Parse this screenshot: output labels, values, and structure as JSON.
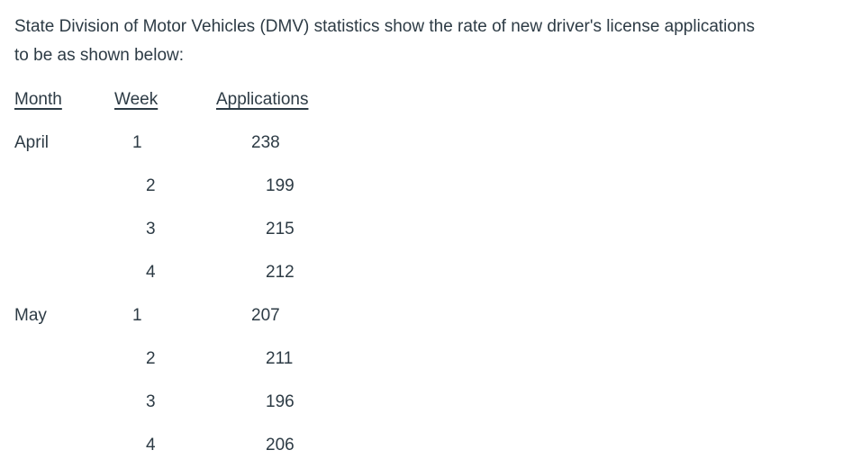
{
  "page": {
    "background_color": "#ffffff",
    "text_color": "#2D3B45"
  },
  "intro": {
    "line1": "State Division of Motor Vehicles (DMV) statistics show the rate of new driver's license applications",
    "line2": "to be as shown below:"
  },
  "table": {
    "headers": {
      "month": "Month",
      "week": "Week",
      "applications": "Applications"
    },
    "rows": [
      {
        "month": "April",
        "week": "1",
        "applications": "238"
      },
      {
        "month": "",
        "week": "2",
        "applications": "199"
      },
      {
        "month": "",
        "week": "3",
        "applications": "215"
      },
      {
        "month": "",
        "week": "4",
        "applications": "212"
      },
      {
        "month": "May",
        "week": "1",
        "applications": "207"
      },
      {
        "month": "",
        "week": "2",
        "applications": "211"
      },
      {
        "month": "",
        "week": "3",
        "applications": "196"
      },
      {
        "month": "",
        "week": "4",
        "applications": "206"
      }
    ]
  }
}
